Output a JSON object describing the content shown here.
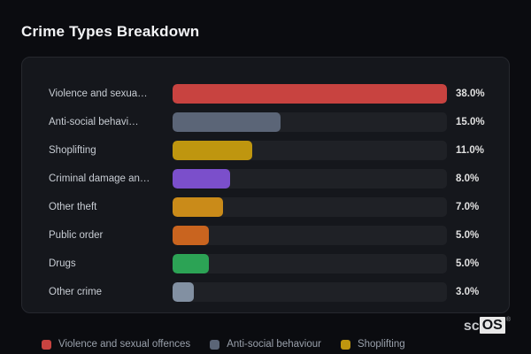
{
  "title": "Crime Types Breakdown",
  "chart_data": {
    "type": "bar",
    "orientation": "horizontal",
    "title": "Crime Types Breakdown",
    "max_value": 38.0,
    "categories": [
      "Violence and sexua…",
      "Anti-social behavi…",
      "Shoplifting",
      "Criminal damage an…",
      "Other theft",
      "Public order",
      "Drugs",
      "Other crime"
    ],
    "values": [
      38.0,
      15.0,
      11.0,
      8.0,
      7.0,
      5.0,
      5.0,
      3.0
    ],
    "value_labels": [
      "38.0%",
      "15.0%",
      "11.0%",
      "8.0%",
      "7.0%",
      "5.0%",
      "5.0%",
      "3.0%"
    ],
    "bar_colors": [
      "#c84340",
      "#5b6577",
      "#bf960f",
      "#7b4fcb",
      "#ca8b19",
      "#c9641f",
      "#2ca355",
      "#8290a2"
    ],
    "track_color": "#1f2126",
    "legend_position": "bottom",
    "legend": [
      {
        "label": "Violence and sexual offences",
        "color": "#c84340"
      },
      {
        "label": "Anti-social behaviour",
        "color": "#5b6577"
      },
      {
        "label": "Shoplifting",
        "color": "#bf960f"
      }
    ]
  },
  "rows": [
    {
      "label": "Violence and sexua…",
      "value": 38.0,
      "value_label": "38.0%",
      "color": "#c84340"
    },
    {
      "label": "Anti-social behavi…",
      "value": 15.0,
      "value_label": "15.0%",
      "color": "#5b6577"
    },
    {
      "label": "Shoplifting",
      "value": 11.0,
      "value_label": "11.0%",
      "color": "#bf960f"
    },
    {
      "label": "Criminal damage an…",
      "value": 8.0,
      "value_label": "8.0%",
      "color": "#7b4fcb"
    },
    {
      "label": "Other theft",
      "value": 7.0,
      "value_label": "7.0%",
      "color": "#ca8b19"
    },
    {
      "label": "Public order",
      "value": 5.0,
      "value_label": "5.0%",
      "color": "#c9641f"
    },
    {
      "label": "Drugs",
      "value": 5.0,
      "value_label": "5.0%",
      "color": "#2ca355"
    },
    {
      "label": "Other crime",
      "value": 3.0,
      "value_label": "3.0%",
      "color": "#8290a2"
    }
  ],
  "legend": {
    "items": [
      {
        "label": "Violence and sexual offences",
        "color": "#c84340"
      },
      {
        "label": "Anti-social behaviour",
        "color": "#5b6577"
      },
      {
        "label": "Shoplifting",
        "color": "#bf960f"
      }
    ]
  },
  "watermark": {
    "prefix": "sc",
    "box": "OS",
    "registered": "®"
  }
}
